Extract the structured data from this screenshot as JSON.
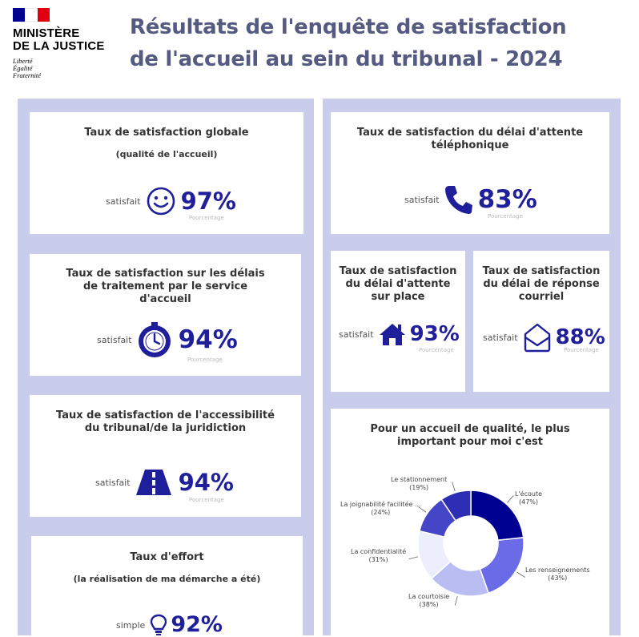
{
  "logo": {
    "ministry_line1": "MINISTÈRE",
    "ministry_line2": "DE LA JUSTICE",
    "motto": [
      "Liberté",
      "Égalité",
      "Fraternité"
    ],
    "flag_colors": [
      "#000091",
      "#ffffff",
      "#e1000f"
    ]
  },
  "header": {
    "title_line1": "Résultats de l'enquête de satisfaction",
    "title_line2": "de l'accueil au sein du tribunal - 2024"
  },
  "colors": {
    "accent": "#1f1f9c",
    "panel": "#c9cceb",
    "title": "#555a80"
  },
  "cards": {
    "global": {
      "title": "Taux de satisfaction globale",
      "subtitle": "(qualité de l'accueil)",
      "label": "satisfait",
      "value": "97%",
      "sublabel": "Pourcentage",
      "icon": "smiley-icon"
    },
    "delais": {
      "title": "Taux de satisfaction sur les délais de traitement par le service d'accueil",
      "label": "satisfait",
      "value": "94%",
      "sublabel": "Pourcentage",
      "icon": "stopwatch-icon"
    },
    "accessibilite": {
      "title": "Taux de satisfaction de l'accessibilité du tribunal/de la juridiction",
      "label": "satisfait",
      "value": "94%",
      "sublabel": "Pourcentage",
      "icon": "road-icon"
    },
    "effort": {
      "title": "Taux d'effort",
      "subtitle": "(la réalisation de ma démarche a été)",
      "label": "simple",
      "value": "92%",
      "icon": "lightbulb-icon"
    },
    "telephone": {
      "title": "Taux de satisfaction du délai d'attente téléphonique",
      "label": "satisfait",
      "value": "83%",
      "sublabel": "Pourcentage",
      "icon": "phone-icon"
    },
    "surplace": {
      "title": "Taux de satisfaction du délai d'attente sur place",
      "label": "satisfait",
      "value": "93%",
      "sublabel": "Pourcentage",
      "icon": "house-icon"
    },
    "courriel": {
      "title": "Taux de satisfaction du délai de réponse courriel",
      "label": "satisfait",
      "value": "88%",
      "sublabel": "Pourcentage",
      "icon": "envelope-icon"
    }
  },
  "chart_data": {
    "type": "pie",
    "title": "Pour un accueil de qualité, le plus important pour moi c'est",
    "series": [
      {
        "label": "L'écoute",
        "value_text": "(47%)",
        "value": 47,
        "color": "#000091"
      },
      {
        "label": "Les renseignements",
        "value_text": "(43%)",
        "value": 43,
        "color": "#6b6be8"
      },
      {
        "label": "La courtoisie",
        "value_text": "(38%)",
        "value": 38,
        "color": "#b9bdf2"
      },
      {
        "label": "La confidentialité",
        "value_text": "(31%)",
        "value": 31,
        "color": "#eceefb"
      },
      {
        "label": "La joignabilité facilitée ...",
        "value_text": "(24%)",
        "value": 24,
        "color": "#4545c8"
      },
      {
        "label": "Le stationnement",
        "value_text": "(19%)",
        "value": 19,
        "color": "#2d2db5"
      }
    ]
  }
}
